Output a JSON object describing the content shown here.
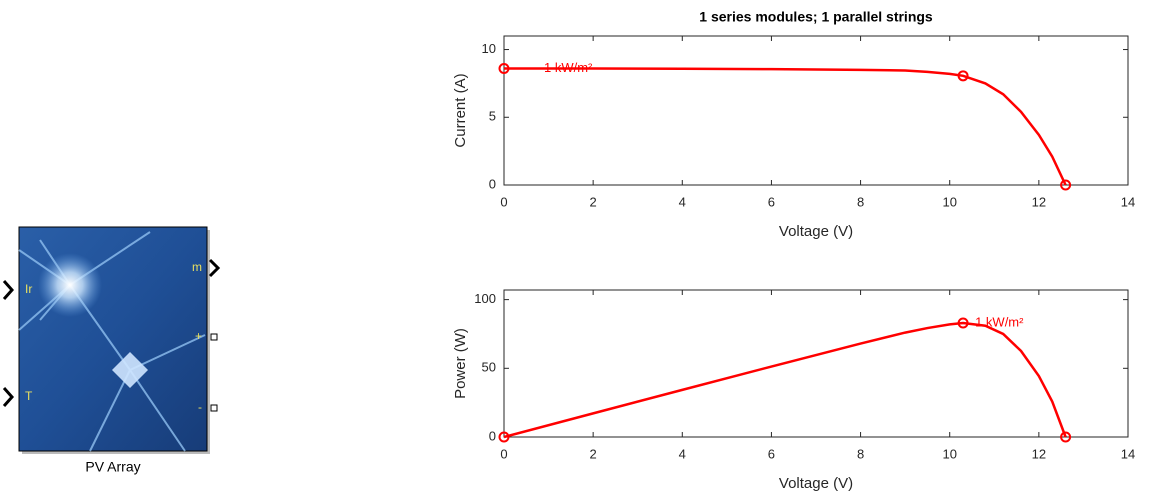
{
  "block": {
    "label": "PV Array",
    "inputs": [
      "Ir",
      "T"
    ],
    "outputs": [
      "m",
      "+",
      "-"
    ]
  },
  "chart_data": [
    {
      "type": "line",
      "title": "1 series modules; 1 parallel strings",
      "xlabel": "Voltage (V)",
      "ylabel": "Current (A)",
      "x": [
        0,
        2,
        4,
        6,
        8,
        9,
        9.5,
        10,
        10.3,
        10.8,
        11.2,
        11.6,
        12,
        12.3,
        12.6
      ],
      "series": [
        {
          "color": "#ff0000",
          "values": [
            8.6,
            8.6,
            8.58,
            8.55,
            8.5,
            8.45,
            8.35,
            8.2,
            8.06,
            7.5,
            6.7,
            5.4,
            3.7,
            2.1,
            0
          ]
        }
      ],
      "points": {
        "x": [
          0,
          10.3,
          12.6
        ],
        "values": [
          8.6,
          8.06,
          0
        ]
      },
      "annotation": "1 kW/m²",
      "xlim": [
        0,
        14
      ],
      "ylim": [
        0,
        11
      ],
      "xticks": [
        0,
        2,
        4,
        6,
        8,
        10,
        12,
        14
      ],
      "yticks": [
        0,
        5,
        10
      ]
    },
    {
      "type": "line",
      "xlabel": "Voltage (V)",
      "ylabel": "Power (W)",
      "x": [
        0,
        2,
        4,
        6,
        8,
        9,
        9.5,
        10,
        10.3,
        10.8,
        11.2,
        11.6,
        12,
        12.3,
        12.6
      ],
      "series": [
        {
          "color": "#ff0000",
          "values": [
            0,
            17.2,
            34.3,
            51.3,
            68,
            76,
            79.3,
            82,
            83,
            81,
            75,
            62.6,
            44.4,
            25.8,
            0
          ]
        }
      ],
      "points": {
        "x": [
          0,
          10.3,
          12.6
        ],
        "values": [
          0,
          83,
          0
        ]
      },
      "annotation": "1 kW/m²",
      "xlim": [
        0,
        14
      ],
      "ylim": [
        0,
        107
      ],
      "xticks": [
        0,
        2,
        4,
        6,
        8,
        10,
        12,
        14
      ],
      "yticks": [
        0,
        50,
        100
      ]
    }
  ]
}
